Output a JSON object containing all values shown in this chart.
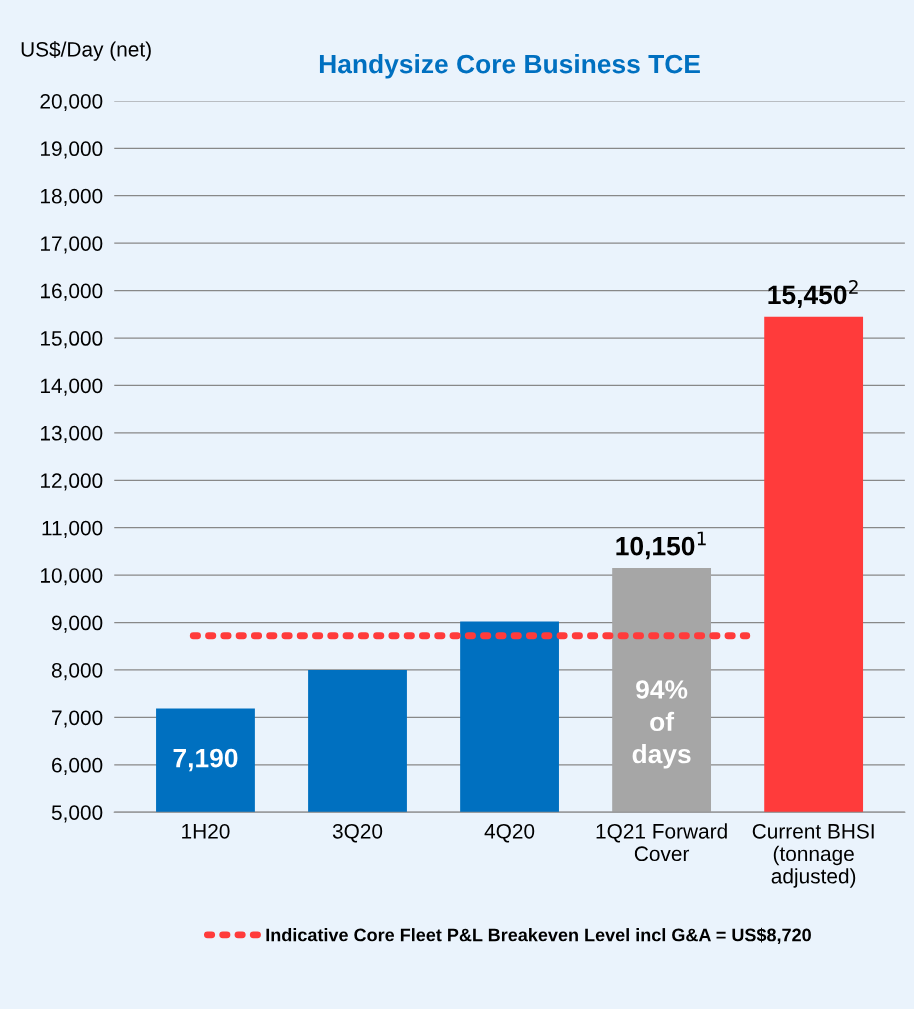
{
  "chart_data": {
    "type": "bar",
    "title": "Handysize Core Business TCE",
    "ylabel": "US$/Day (net)",
    "categories": [
      "1H20",
      "3Q20",
      "4Q20",
      "1Q21 Forward\nCover",
      "Current BHSI\n(tonnage\nadjusted)"
    ],
    "values": [
      7190,
      8000,
      9020,
      10150,
      15450
    ],
    "colors": [
      "#0070c0",
      "#0070c0",
      "#0070c0",
      "#a6a6a6",
      "#ff3b3b"
    ],
    "value_labels": [
      "7,190",
      null,
      null,
      "10,150$^{1}$",
      "15,450$^{2}$"
    ],
    "ylim": [
      5000,
      20000
    ],
    "yticks": [
      {
        "value": 5000,
        "label": "5,000"
      },
      {
        "value": 6000,
        "label": "6,000"
      },
      {
        "value": 7000,
        "label": "7,000"
      },
      {
        "value": 8000,
        "label": "8,000"
      },
      {
        "value": 9000,
        "label": "9,000"
      },
      {
        "value": 10000,
        "label": "10,000"
      },
      {
        "value": 11000,
        "label": "11,000"
      },
      {
        "value": 12000,
        "label": "12,000"
      },
      {
        "value": 13000,
        "label": "13,000"
      },
      {
        "value": 14000,
        "label": "14,000"
      },
      {
        "value": 15000,
        "label": "15,000"
      },
      {
        "value": 16000,
        "label": "16,000"
      },
      {
        "value": 17000,
        "label": "17,000"
      },
      {
        "value": 18000,
        "label": "18,000"
      },
      {
        "value": 19000,
        "label": "19,000"
      },
      {
        "value": 20000,
        "label": "20,000"
      }
    ],
    "grid": "y",
    "ref_lines": [
      {
        "axis": "y",
        "value": 8720,
        "label": "Indicative Core Fleet P&L Breakeven Level incl G&A = US$8,720",
        "color": "#ff3b3b",
        "line_style": "dotted"
      }
    ],
    "annotations": [
      "94%\nof\ndays"
    ],
    "legend": "bottom"
  }
}
